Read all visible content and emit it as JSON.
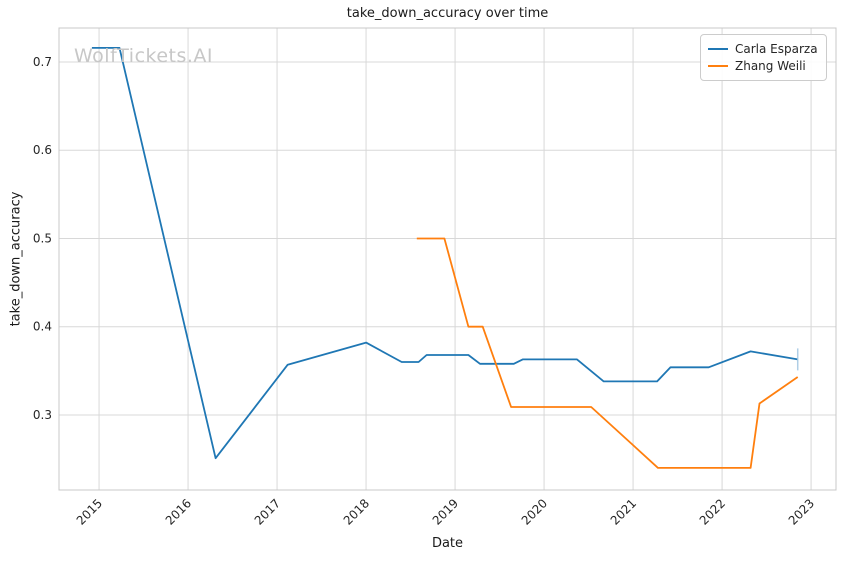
{
  "chart_data": {
    "type": "line",
    "title": "take_down_accuracy over time",
    "xlabel": "Date",
    "ylabel": "take_down_accuracy",
    "xlim": [
      2014.55,
      2023.28
    ],
    "ylim": [
      0.215,
      0.7385
    ],
    "x_ticks": [
      2015,
      2016,
      2017,
      2018,
      2019,
      2020,
      2021,
      2022,
      2023
    ],
    "x_tick_labels": [
      "2015",
      "2016",
      "2017",
      "2018",
      "2019",
      "2020",
      "2021",
      "2022",
      "2023"
    ],
    "y_ticks": [
      0.3,
      0.4,
      0.5,
      0.6,
      0.7
    ],
    "y_tick_labels": [
      "0.3",
      "0.4",
      "0.5",
      "0.6",
      "0.7"
    ],
    "grid": true,
    "legend_position": "upper right",
    "series": [
      {
        "name": "Carla Esparza",
        "color": "#1f77b4",
        "points": [
          [
            2014.92,
            0.716
          ],
          [
            2015.23,
            0.716
          ],
          [
            2016.31,
            0.251
          ],
          [
            2017.12,
            0.357
          ],
          [
            2018.0,
            0.382
          ],
          [
            2018.4,
            0.36
          ],
          [
            2018.59,
            0.36
          ],
          [
            2018.68,
            0.368
          ],
          [
            2019.15,
            0.368
          ],
          [
            2019.28,
            0.358
          ],
          [
            2019.66,
            0.358
          ],
          [
            2019.76,
            0.363
          ],
          [
            2020.37,
            0.363
          ],
          [
            2020.67,
            0.338
          ],
          [
            2021.27,
            0.338
          ],
          [
            2021.42,
            0.354
          ],
          [
            2021.85,
            0.354
          ],
          [
            2022.32,
            0.372
          ],
          [
            2022.85,
            0.363
          ]
        ]
      },
      {
        "name": "Zhang Weili",
        "color": "#ff7f0e",
        "points": [
          [
            2018.57,
            0.5
          ],
          [
            2018.88,
            0.5
          ],
          [
            2019.15,
            0.4
          ],
          [
            2019.31,
            0.4
          ],
          [
            2019.63,
            0.309
          ],
          [
            2020.53,
            0.309
          ],
          [
            2021.28,
            0.24
          ],
          [
            2022.32,
            0.24
          ],
          [
            2022.42,
            0.313
          ],
          [
            2022.85,
            0.343
          ]
        ]
      }
    ]
  },
  "watermark": {
    "text": "WolfTickets.AI"
  },
  "colors": {
    "grid": "#d8d8d8",
    "spine": "#c8c8c8",
    "tick_text": "#262626",
    "title_text": "#1a1a1a",
    "background": "#ffffff",
    "series_end_cap": "#9dc3e0"
  }
}
